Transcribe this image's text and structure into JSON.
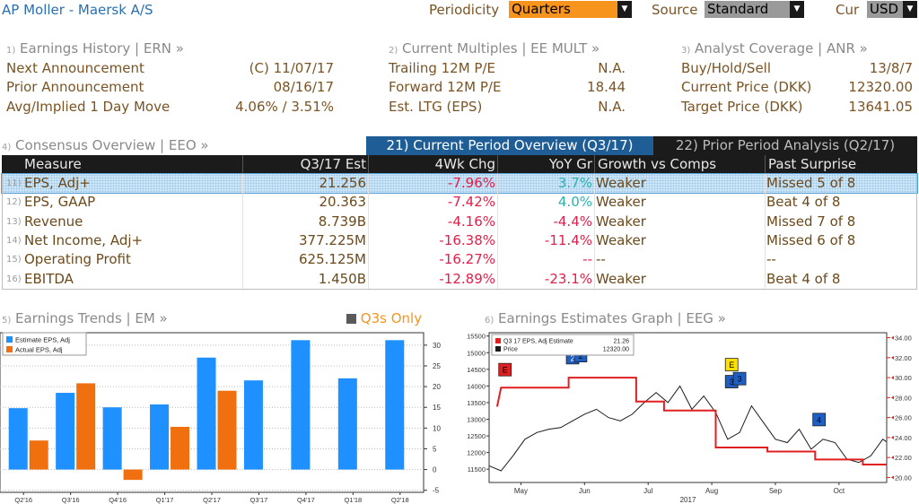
{
  "header": {
    "title": "AP Moller - Maersk A/S",
    "periodicity_label": "Periodicity",
    "periodicity_value": "Quarters",
    "source_label": "Source",
    "source_value": "Standard",
    "cur_label": "Cur",
    "cur_value": "USD"
  },
  "ern": {
    "num": "1)",
    "title": "Earnings History | ERN »",
    "rows": [
      {
        "label": "Next Announcement",
        "value": "(C)  11/07/17"
      },
      {
        "label": "Prior Announcement",
        "value": "08/16/17"
      },
      {
        "label": "Avg/Implied 1 Day Move",
        "value": "4.06% / 3.51%"
      }
    ]
  },
  "mult": {
    "num": "2)",
    "title": "Current Multiples | EE MULT »",
    "rows": [
      {
        "label": "Trailing 12M P/E",
        "value": "N.A."
      },
      {
        "label": "Forward 12M P/E",
        "value": "18.44"
      },
      {
        "label": "Est. LTG (EPS)",
        "value": "N.A."
      }
    ]
  },
  "anr": {
    "num": "3)",
    "title": "Analyst Coverage | ANR »",
    "rows": [
      {
        "label": "Buy/Hold/Sell",
        "value": "13/8/7"
      },
      {
        "label": "Current Price (DKK)",
        "value": "12320.00"
      },
      {
        "label": "Target Price (DKK)",
        "value": "13641.05"
      }
    ]
  },
  "consensus": {
    "num": "4)",
    "title": "Consensus Overview | EEO »",
    "tab_current": "21) Current Period Overview (Q3/17)",
    "tab_prior": "22) Prior Period Analysis (Q2/17)",
    "columns": [
      "Measure",
      "Q3/17 Est",
      "4Wk Chg",
      "YoY Gr",
      "Growth vs Comps",
      "Past Surprise"
    ],
    "rows": [
      {
        "num": "11)",
        "measure": "EPS, Adj+",
        "est": "21.256",
        "chg": "-7.96%",
        "yoy": "3.7%",
        "comps": "Weaker",
        "surprise": "Missed 5 of 8"
      },
      {
        "num": "12)",
        "measure": "EPS, GAAP",
        "est": "20.363",
        "chg": "-7.42%",
        "yoy": "4.0%",
        "comps": "Weaker",
        "surprise": "Beat 4 of 8"
      },
      {
        "num": "13)",
        "measure": "Revenue",
        "est": "8.739B",
        "chg": "-4.16%",
        "yoy": "-4.4%",
        "comps": "Weaker",
        "surprise": "Missed 7 of 8"
      },
      {
        "num": "14)",
        "measure": "Net Income, Adj+",
        "est": "377.225M",
        "chg": "-16.38%",
        "yoy": "-11.4%",
        "comps": "Weaker",
        "surprise": "Missed 6 of 8"
      },
      {
        "num": "15)",
        "measure": "Operating Profit",
        "est": "625.125M",
        "chg": "-16.27%",
        "yoy": "--",
        "comps": "--",
        "surprise": "--"
      },
      {
        "num": "16)",
        "measure": "EBITDA",
        "est": "1.450B",
        "chg": "-12.89%",
        "yoy": "-23.1%",
        "comps": "Weaker",
        "surprise": "Beat 4 of 8"
      }
    ]
  },
  "trends": {
    "num": "5)",
    "title": "Earnings Trends | EM »",
    "toggle": "Q3s Only"
  },
  "graph": {
    "num": "6)",
    "title": "Earnings Estimates Graph | EEG »"
  },
  "colors": {
    "estimate": "#1e90ff",
    "actual": "#f07010",
    "est_line": "#e02020",
    "price_line": "#1a1a1a",
    "accent_orange": "#f7941d"
  },
  "chart_data": [
    {
      "type": "bar",
      "categories": [
        "Q2'16",
        "Q3'16",
        "Q4'16",
        "Q1'17",
        "Q2'17",
        "Q3'17",
        "Q4'17",
        "Q1'18",
        "Q2'18"
      ],
      "series": [
        {
          "name": "Estimate EPS, Adj",
          "values": [
            14.8,
            18.5,
            15.0,
            15.7,
            27.0,
            21.5,
            31.2,
            22.0,
            31.2
          ]
        },
        {
          "name": "Actual EPS, Adj",
          "values": [
            7.0,
            20.8,
            -2.5,
            10.3,
            19.0,
            null,
            null,
            null,
            null
          ]
        }
      ],
      "yticks": [
        -5,
        0,
        5,
        10,
        15,
        20,
        25,
        30
      ],
      "ylim": [
        -5.5,
        33
      ]
    },
    {
      "type": "line",
      "x_ticks": [
        "May",
        "Jun",
        "Jul",
        "Aug",
        "Sep",
        "Oct"
      ],
      "x_year": "2017",
      "left_axis": {
        "ticks": [
          11500,
          12000,
          12500,
          13000,
          13500,
          14000,
          14500,
          15000,
          15500
        ],
        "range": [
          11100,
          15600
        ]
      },
      "right_axis": {
        "ticks": [
          "20.00",
          "22.00",
          "24.00",
          "26.00",
          "28.00",
          "30.00",
          "32.00",
          "34.00"
        ],
        "range": [
          19.5,
          34.5
        ]
      },
      "legend": [
        {
          "name": "Q3 17 EPS, Adj Estimate",
          "value": "21.26"
        },
        {
          "name": "Price",
          "value": "12320.00"
        }
      ],
      "series": [
        {
          "name": "Q3 17 EPS, Adj Estimate",
          "axis": "right",
          "x": [
            0.02,
            0.03,
            0.2,
            0.2,
            0.37,
            0.37,
            0.44,
            0.44,
            0.57,
            0.57,
            0.7,
            0.7,
            0.82,
            0.82,
            0.94,
            0.94,
            1.0
          ],
          "y": [
            27.1,
            29.0,
            29.0,
            30.0,
            30.0,
            27.6,
            27.6,
            26.7,
            26.7,
            23.0,
            23.0,
            22.6,
            22.6,
            21.8,
            21.8,
            21.3,
            21.3
          ]
        },
        {
          "name": "Price",
          "axis": "left",
          "x": [
            0.0,
            0.03,
            0.06,
            0.09,
            0.12,
            0.15,
            0.18,
            0.21,
            0.24,
            0.27,
            0.3,
            0.33,
            0.36,
            0.39,
            0.42,
            0.45,
            0.48,
            0.51,
            0.54,
            0.57,
            0.6,
            0.63,
            0.66,
            0.69,
            0.72,
            0.75,
            0.78,
            0.81,
            0.84,
            0.87,
            0.9,
            0.93,
            0.96,
            0.99,
            1.0
          ],
          "y": [
            11600,
            11450,
            11900,
            12400,
            12600,
            12700,
            12750,
            12950,
            13150,
            13300,
            13050,
            12950,
            13150,
            13500,
            13800,
            13500,
            14000,
            13300,
            13700,
            13200,
            12400,
            12600,
            13400,
            12900,
            12400,
            12300,
            12700,
            12100,
            12400,
            12300,
            11800,
            11700,
            11900,
            12400,
            12320
          ]
        }
      ],
      "event_labels": [
        "E",
        "2",
        "2",
        "E",
        "3",
        "3",
        "4"
      ]
    }
  ]
}
